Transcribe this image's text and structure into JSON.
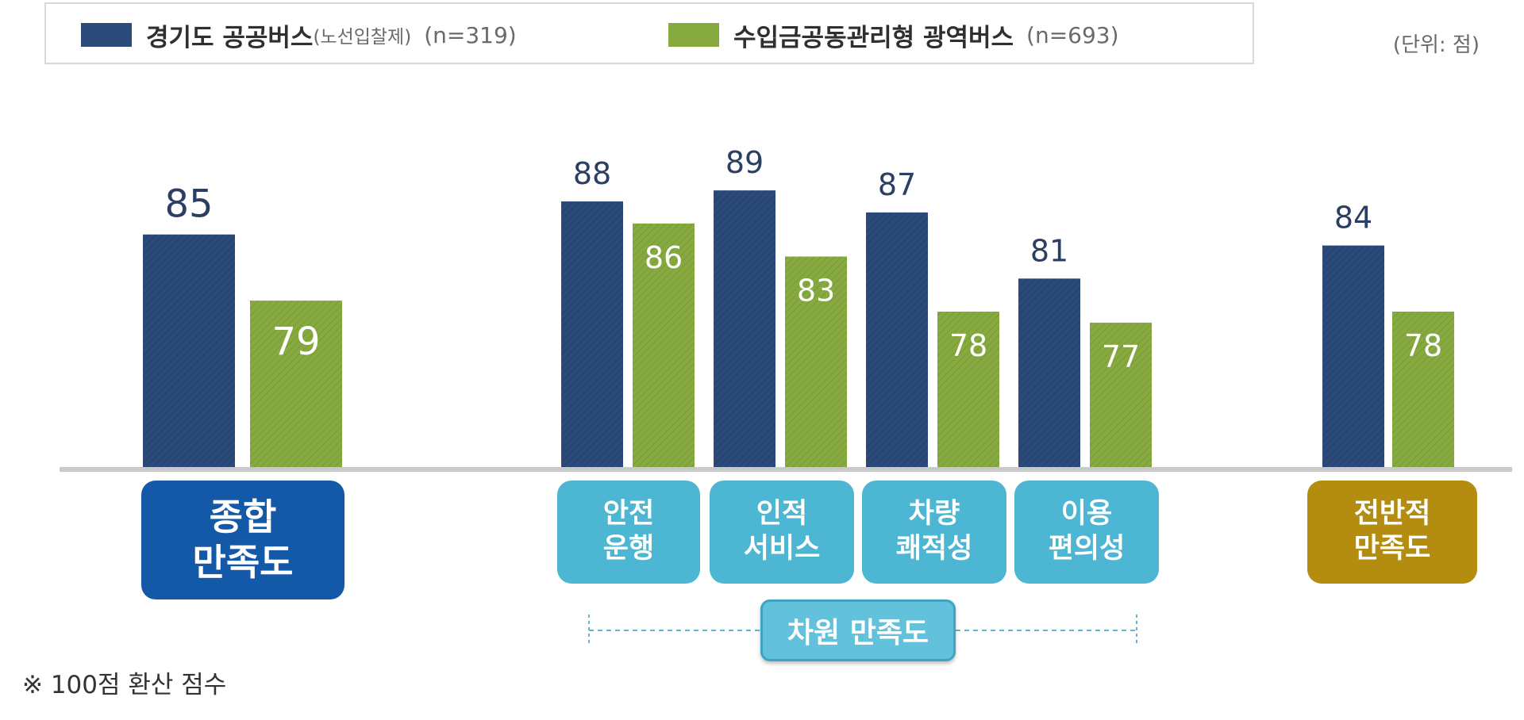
{
  "legend": {
    "series1": {
      "name": "경기도 공공버스",
      "sub": "(노선입찰제)",
      "n": "(n=319)",
      "color": "#2b4a7a"
    },
    "series2": {
      "name": "수입금공동관리형 광역버스",
      "n": "(n=693)",
      "color": "#86aa40"
    }
  },
  "unit": "(단위: 점)",
  "categories": {
    "overall": "종합\n만족도",
    "safety": "안전\n운행",
    "service": "인적\n서비스",
    "comfort": "차량\n쾌적성",
    "convenience": "이용\n편의성",
    "general": "전반적\n만족도"
  },
  "group_label": "차원 만족도",
  "footnote": "※ 100점 환산 점수",
  "chart_data": {
    "type": "bar",
    "categories": [
      "종합 만족도",
      "안전 운행",
      "인적 서비스",
      "차량 쾌적성",
      "이용 편의성",
      "전반적 만족도"
    ],
    "series": [
      {
        "name": "경기도 공공버스(노선입찰제) (n=319)",
        "values": [
          85,
          88,
          89,
          87,
          81,
          84
        ],
        "color": "#2b4a7a"
      },
      {
        "name": "수입금공동관리형 광역버스 (n=693)",
        "values": [
          79,
          86,
          83,
          78,
          77,
          78
        ],
        "color": "#86aa40"
      }
    ]
  }
}
